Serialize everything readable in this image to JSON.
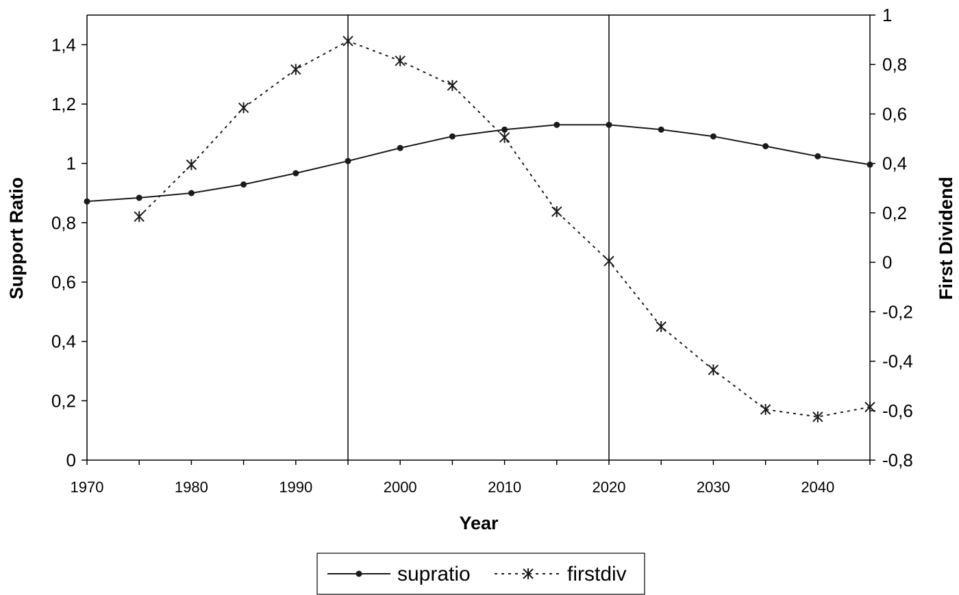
{
  "chart_data": {
    "type": "line",
    "title": "",
    "xlabel": "Year",
    "ylabel_left": "Support Ratio",
    "ylabel_right": "First Dividend",
    "xlim": [
      1970,
      2045
    ],
    "ylim_left": [
      0,
      1.5
    ],
    "ylim_right": [
      -0.8,
      1
    ],
    "x_ticks": [
      1970,
      1980,
      1990,
      2000,
      2010,
      2020,
      2030,
      2040
    ],
    "x_tick_labels": [
      "1970",
      "1980",
      "1990",
      "2000",
      "2010",
      "2020",
      "2030",
      "2040"
    ],
    "y_left_ticks": [
      0,
      0.2,
      0.4,
      0.6,
      0.8,
      1,
      1.2,
      1.4
    ],
    "y_left_tick_labels": [
      "0",
      "0,2",
      "0,4",
      "0,6",
      "0,8",
      "1",
      "1,2",
      "1,4"
    ],
    "y_right_ticks": [
      -0.8,
      -0.6,
      -0.4,
      -0.2,
      0,
      0.2,
      0.4,
      0.6,
      0.8,
      1
    ],
    "y_right_tick_labels": [
      "-0,8",
      "-0,6",
      "-0,4",
      "-0,2",
      "0",
      "0,2",
      "0,4",
      "0,6",
      "0,8",
      "1"
    ],
    "reference_lines_x": [
      1995,
      2020
    ],
    "grid": false,
    "legend_position": "bottom-center",
    "series": [
      {
        "name": "supratio",
        "axis": "left",
        "style": "solid",
        "marker": "circle",
        "color": "#1a1a1a",
        "x": [
          1970,
          1975,
          1980,
          1985,
          1990,
          1995,
          2000,
          2005,
          2010,
          2015,
          2020,
          2025,
          2030,
          2035,
          2040,
          2045
        ],
        "values": [
          0.872,
          0.884,
          0.9,
          0.929,
          0.967,
          1.008,
          1.052,
          1.091,
          1.114,
          1.13,
          1.13,
          1.114,
          1.091,
          1.058,
          1.024,
          0.996
        ]
      },
      {
        "name": "firstdiv",
        "axis": "right",
        "style": "dotted",
        "marker": "asterisk",
        "color": "#1a1a1a",
        "x": [
          1975,
          1980,
          1985,
          1990,
          1995,
          2000,
          2005,
          2010,
          2015,
          2020,
          2025,
          2030,
          2035,
          2040,
          2045
        ],
        "values": [
          0.185,
          0.395,
          0.625,
          0.78,
          0.895,
          0.815,
          0.715,
          0.505,
          0.205,
          0.005,
          -0.26,
          -0.435,
          -0.595,
          -0.625,
          -0.585
        ]
      }
    ]
  }
}
